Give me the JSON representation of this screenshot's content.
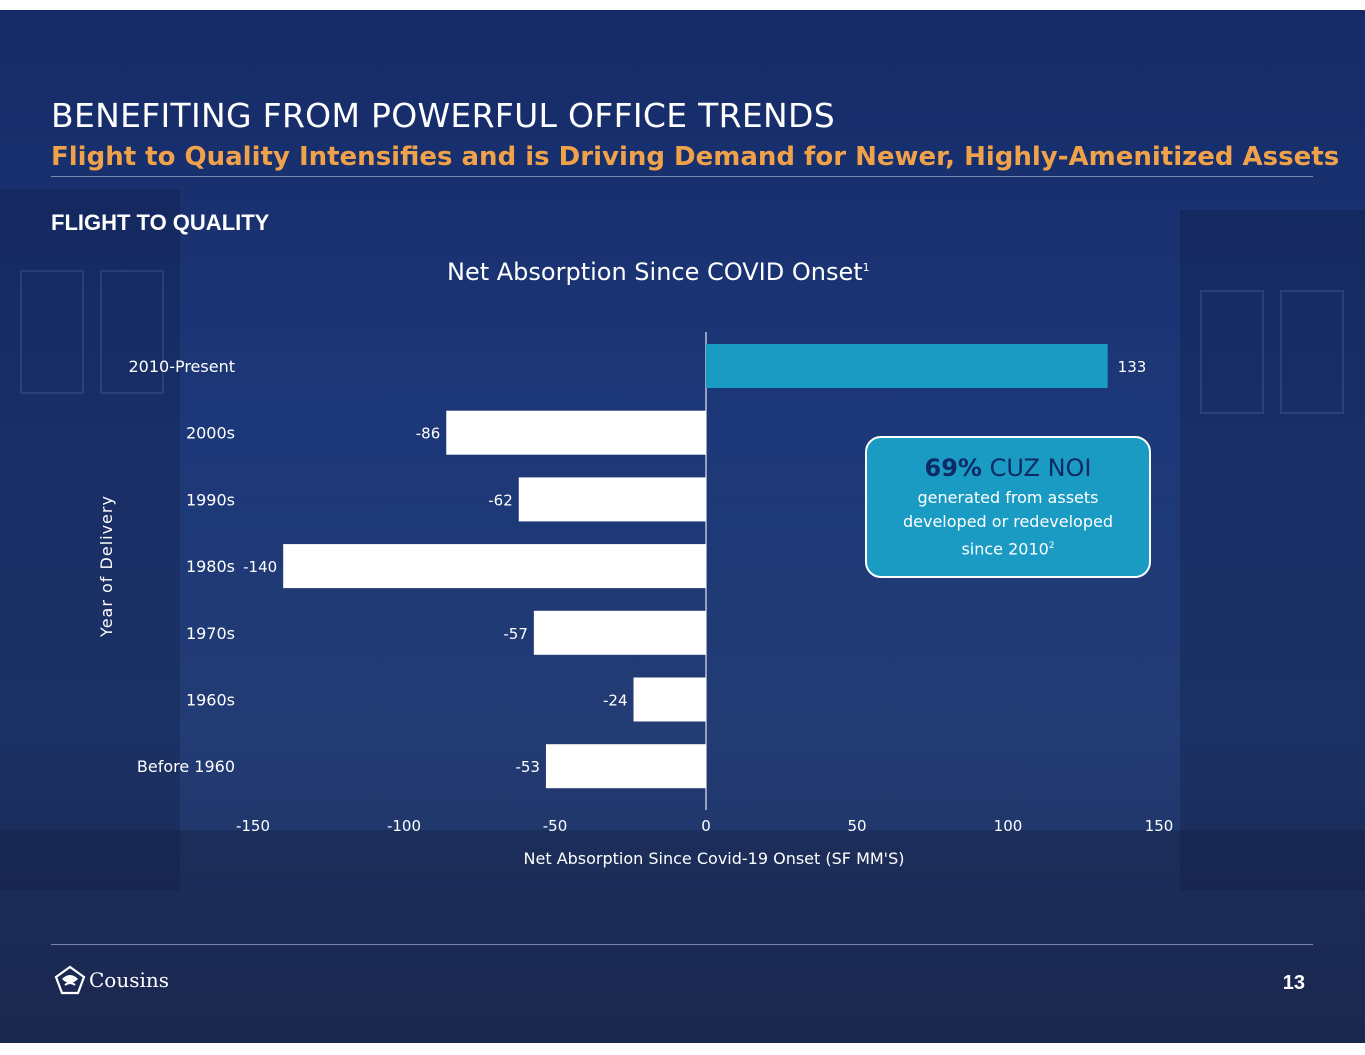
{
  "header": {
    "title": "BENEFITING FROM POWERFUL OFFICE TRENDS",
    "subtitle": "Flight to Quality Intensifies and is Driving Demand for Newer, Highly-Amenitized Assets"
  },
  "section_label": "FLIGHT TO QUALITY",
  "callout": {
    "headline_pct": "69%",
    "headline_text": "CUZ NOI",
    "line1": "generated from assets",
    "line2": "developed or redeveloped",
    "line3": "since 2010",
    "footnote": "2",
    "color": "#1a9bc4"
  },
  "footer": {
    "company": "Cousins",
    "page_number": "13"
  },
  "chart_data": {
    "type": "bar",
    "orientation": "horizontal",
    "title": "Net Absorption Since COVID Onset",
    "title_footnote": "1",
    "xlabel": "Net Absorption Since Covid-19 Onset (SF MM'S)",
    "ylabel": "Year of Delivery",
    "categories": [
      "2010-Present",
      "2000s",
      "1990s",
      "1980s",
      "1970s",
      "1960s",
      "Before 1960"
    ],
    "values": [
      133,
      -86,
      -62,
      -140,
      -57,
      -24,
      -53
    ],
    "data_labels": [
      "133",
      "-86",
      "-62",
      "-140",
      "-57",
      "-24",
      "-53"
    ],
    "xlim": [
      -150,
      150
    ],
    "xticks": [
      "-150",
      "-100",
      "-50",
      "0",
      "50",
      "100",
      "150"
    ],
    "grid": false,
    "colors": {
      "positive": "#1a9bc4",
      "negative": "#ffffff"
    }
  }
}
